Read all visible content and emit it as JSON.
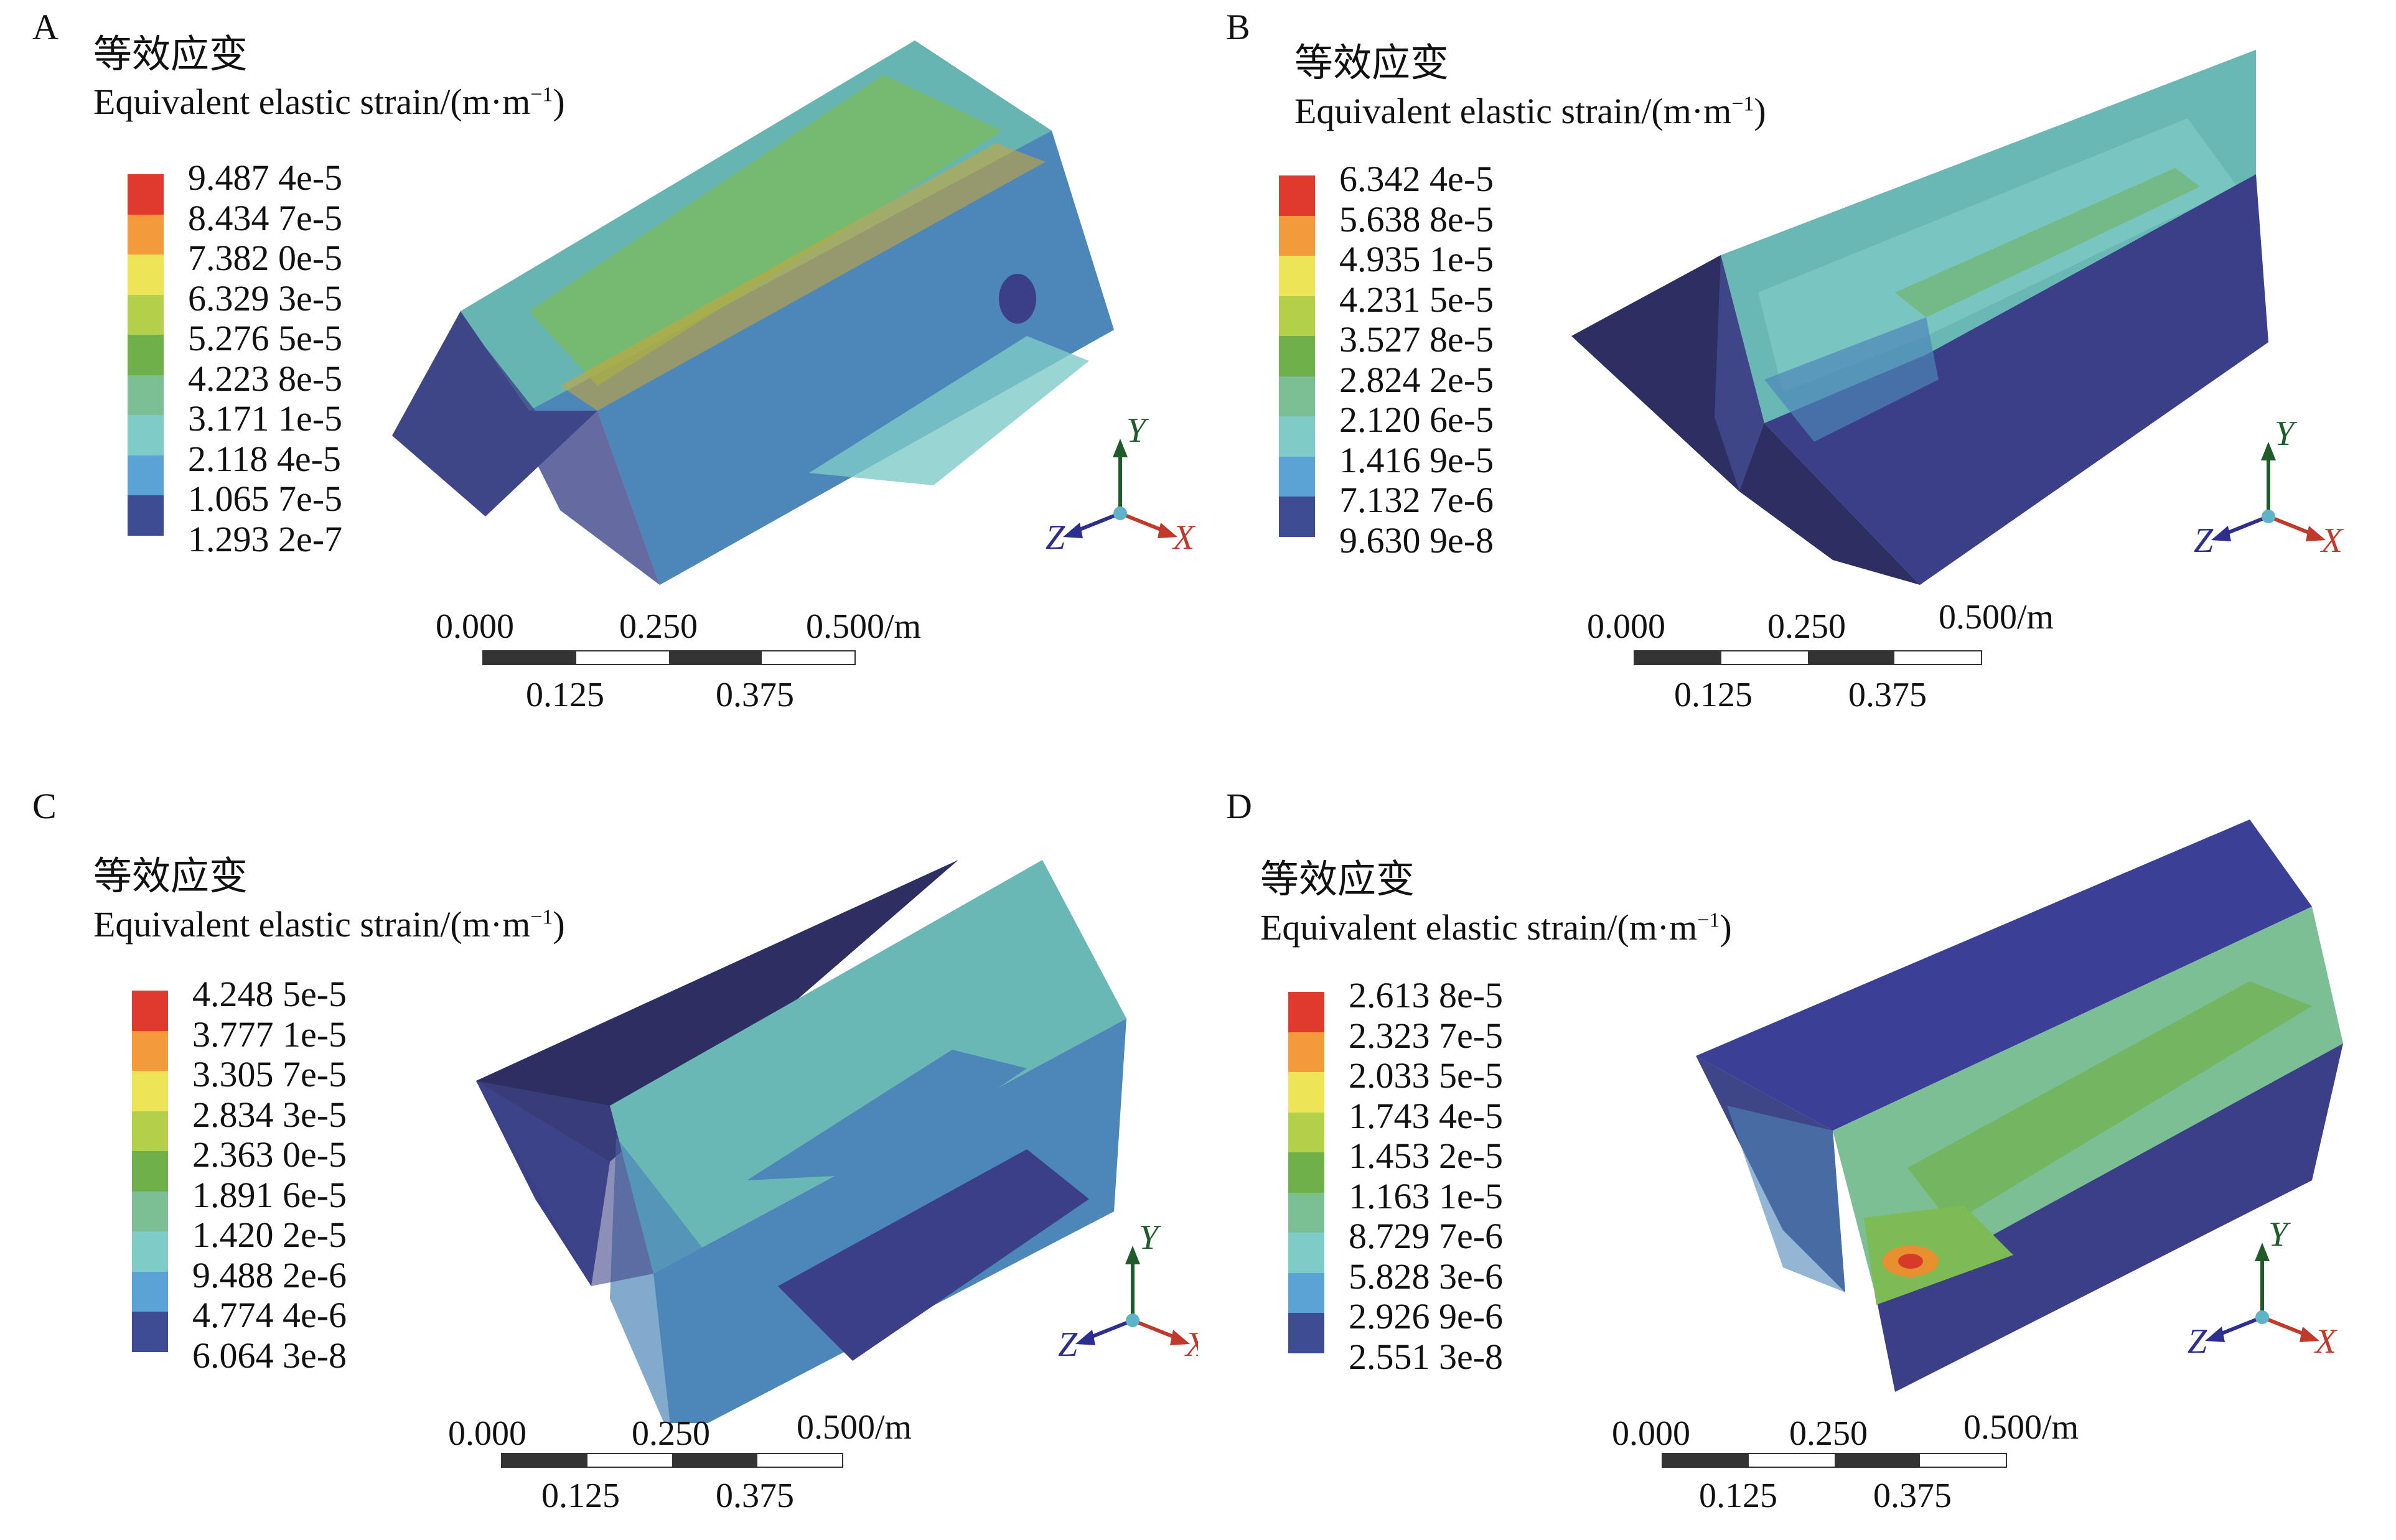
{
  "panels": [
    {
      "letter": "A",
      "title_cn": "等效应变",
      "title_en": "Equivalent elastic strain/(m·m",
      "title_sup": "−1",
      "title_close": ")",
      "legend": [
        "9.487 4e-5",
        "8.434 7e-5",
        "7.382 0e-5",
        "6.329 3e-5",
        "5.276 5e-5",
        "4.223 8e-5",
        "3.171 1e-5",
        "2.118 4e-5",
        "1.065 7e-5",
        "1.293 2e-7"
      ],
      "scale": {
        "t0": "0.000",
        "t1": "0.250",
        "t2": "0.500/m",
        "b1": "0.125",
        "b2": "0.375"
      },
      "axes": {
        "y": "Y",
        "z": "Z",
        "x": "X"
      }
    },
    {
      "letter": "B",
      "title_cn": "等效应变",
      "title_en": "Equivalent elastic strain/(m·m",
      "title_sup": "−1",
      "title_close": ")",
      "legend": [
        "6.342 4e-5",
        "5.638 8e-5",
        "4.935 1e-5",
        "4.231 5e-5",
        "3.527 8e-5",
        "2.824 2e-5",
        "2.120 6e-5",
        "1.416 9e-5",
        "7.132 7e-6",
        "9.630 9e-8"
      ],
      "scale": {
        "t0": "0.000",
        "t1": "0.250",
        "t2": "0.500/m",
        "b1": "0.125",
        "b2": "0.375"
      },
      "axes": {
        "y": "Y",
        "z": "Z",
        "x": "X"
      }
    },
    {
      "letter": "C",
      "title_cn": "等效应变",
      "title_en": "Equivalent elastic strain/(m·m",
      "title_sup": "−1",
      "title_close": ")",
      "legend": [
        "4.248 5e-5",
        "3.777 1e-5",
        "3.305 7e-5",
        "2.834 3e-5",
        "2.363 0e-5",
        "1.891 6e-5",
        "1.420 2e-5",
        "9.488 2e-6",
        "4.774 4e-6",
        "6.064 3e-8"
      ],
      "scale": {
        "t0": "0.000",
        "t1": "0.250",
        "t2": "0.500/m",
        "b1": "0.125",
        "b2": "0.375"
      },
      "axes": {
        "y": "Y",
        "z": "Z",
        "x": "X"
      }
    },
    {
      "letter": "D",
      "title_cn": "等效应变",
      "title_en": "Equivalent elastic strain/(m·m",
      "title_sup": "−1",
      "title_close": ")",
      "legend": [
        "2.613 8e-5",
        "2.323 7e-5",
        "2.033 5e-5",
        "1.743 4e-5",
        "1.453 2e-5",
        "1.163 1e-5",
        "8.729 7e-6",
        "5.828 3e-6",
        "2.926 9e-6",
        "2.551 3e-8"
      ],
      "scale": {
        "t0": "0.000",
        "t1": "0.250",
        "t2": "0.500/m",
        "b1": "0.125",
        "b2": "0.375"
      },
      "axes": {
        "y": "Y",
        "z": "Z",
        "x": "X"
      }
    }
  ],
  "colors": {
    "legend_scale": [
      "#e03a2e",
      "#f39a3c",
      "#eee457",
      "#b4cf4a",
      "#6fb04a",
      "#7cbf94",
      "#7fcbc7",
      "#5aa3d4",
      "#3d4c93",
      "#3d4c93"
    ],
    "blue_dark": "#3a3f88",
    "blue_mid": "#4d86b8",
    "cyan": "#6fc2bd",
    "green": "#7dbb55",
    "yellow_green": "#b9cf49",
    "orange": "#e8902f",
    "red": "#d63a2a",
    "axis_y": "#1f5c2a",
    "axis_z": "#2c2f8f",
    "axis_x": "#c0392b"
  }
}
